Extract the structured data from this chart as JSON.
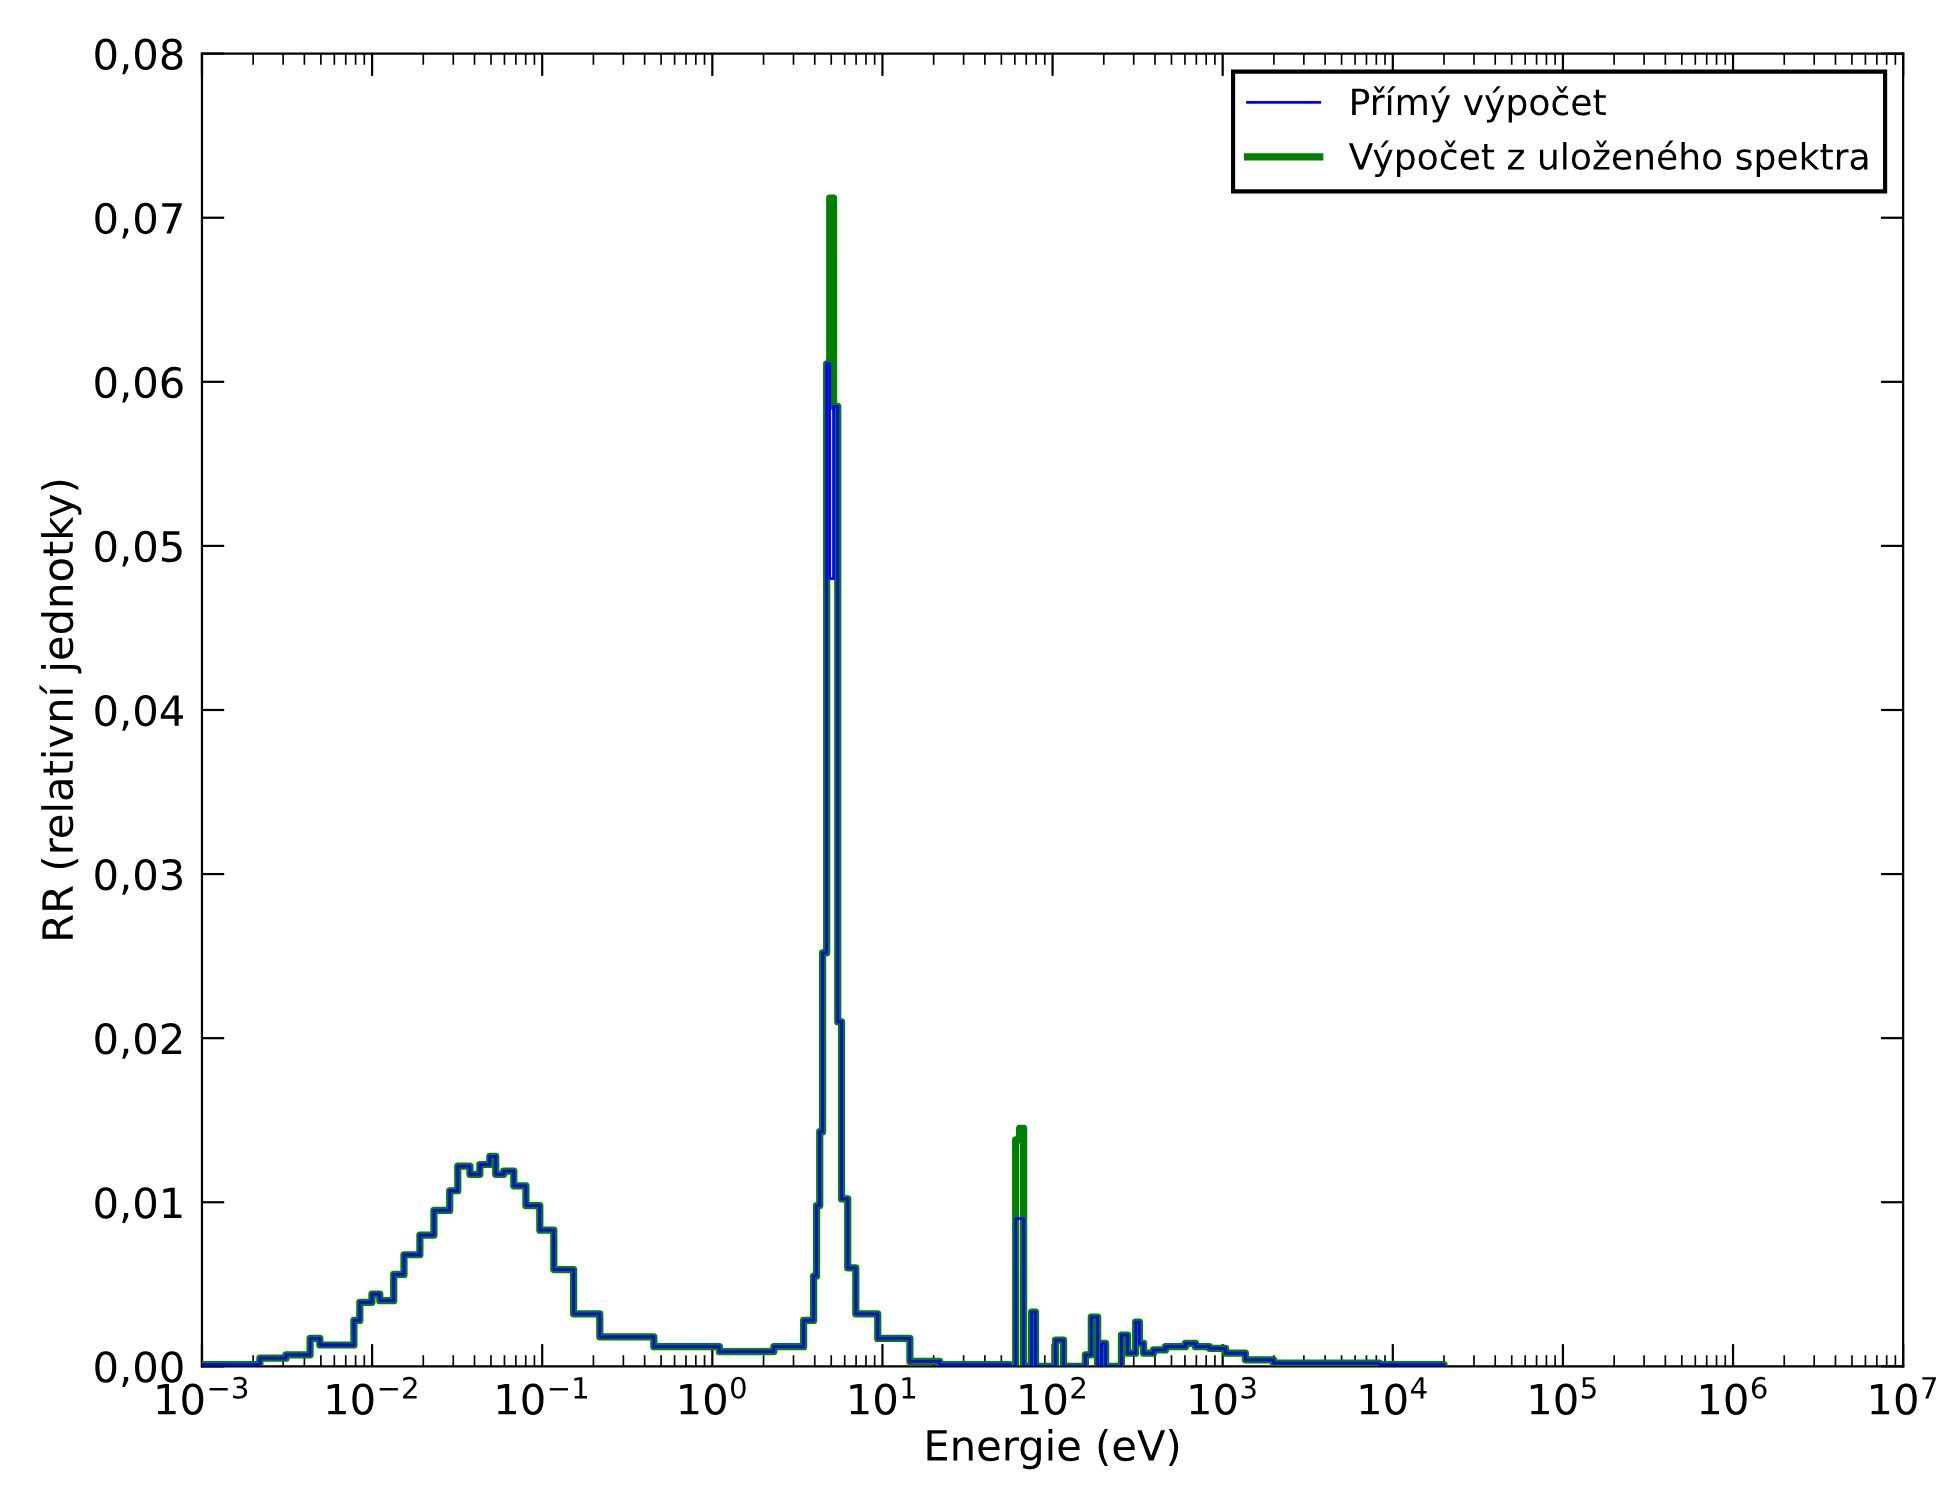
{
  "chart_data": {
    "type": "step",
    "xlabel": "Energie (eV)",
    "ylabel": "RR (relativní jednotky)",
    "log": "x",
    "grid": false,
    "legend": "top right",
    "line_style": "solid",
    "marker": "none",
    "x": [
      0.001,
      0.00219,
      0.00312,
      0.00432,
      0.00493,
      0.00782,
      0.00847,
      0.00998,
      0.0111,
      0.0134,
      0.0154,
      0.0191,
      0.0231,
      0.0286,
      0.0319,
      0.0376,
      0.043,
      0.0492,
      0.0533,
      0.0594,
      0.0681,
      0.0802,
      0.0968,
      0.117,
      0.153,
      0.218,
      0.453,
      1.1,
      2.3,
      3.44,
      3.94,
      4.1,
      4.28,
      4.45,
      4.7,
      4.9,
      5.16,
      5.46,
      5.75,
      6.25,
      6.97,
      9.38,
      14.5,
      21.7,
      55.8,
      60.7,
      64.0,
      67.6,
      75.3,
      79.4,
      104,
      116,
      156,
      169,
      184,
      194,
      205,
      254,
      276,
      308,
      324,
      343,
      392,
      461,
      604,
      692,
      836,
      1040,
      1360,
      1990,
      8340,
      20000
    ],
    "series": [
      {
        "name": "Přímý výpočet",
        "color": "#0000ff",
        "values": [
          0.0001,
          0.0005,
          0.0007,
          0.0017,
          0.0013,
          0.0028,
          0.0039,
          0.0044,
          0.004,
          0.0056,
          0.0068,
          0.008,
          0.0095,
          0.0107,
          0.0122,
          0.0117,
          0.0123,
          0.0128,
          0.0117,
          0.0119,
          0.011,
          0.0098,
          0.0083,
          0.0059,
          0.0032,
          0.0018,
          0.0012,
          0.0009,
          0.0012,
          0.0028,
          0.0055,
          0.0098,
          0.0143,
          0.0252,
          0.0611,
          0.048,
          0.0585,
          0.021,
          0.0102,
          0.006,
          0.0032,
          0.0017,
          0.0003,
          0.0001,
          0.0,
          0.009,
          0.009,
          0.0,
          0.0033,
          0.0,
          0.0016,
          0.0,
          0.0007,
          0.003,
          0.0,
          0.0014,
          0.0,
          0.0019,
          0.0008,
          0.0027,
          0.0014,
          0.0008,
          0.001,
          0.0012,
          0.0014,
          0.0012,
          0.0011,
          0.0008,
          0.0004,
          0.0002,
          0.0001,
          0.0
        ]
      },
      {
        "name": "Výpočet z uloženého spektra",
        "color": "#008000",
        "values": [
          0.0001,
          0.0005,
          0.0007,
          0.0017,
          0.0013,
          0.0028,
          0.0039,
          0.0044,
          0.004,
          0.0056,
          0.0068,
          0.008,
          0.0095,
          0.0107,
          0.0122,
          0.0117,
          0.0123,
          0.0128,
          0.0117,
          0.0119,
          0.011,
          0.0098,
          0.0083,
          0.0059,
          0.0032,
          0.0018,
          0.0012,
          0.0009,
          0.0012,
          0.0028,
          0.0055,
          0.0098,
          0.0143,
          0.0252,
          0.0611,
          0.0712,
          0.0585,
          0.021,
          0.0102,
          0.006,
          0.0032,
          0.0017,
          0.0003,
          0.0001,
          0.0,
          0.0138,
          0.0145,
          0.0,
          0.0033,
          0.0,
          0.0016,
          0.0,
          0.0007,
          0.003,
          0.0,
          0.0014,
          0.0,
          0.0019,
          0.0008,
          0.0027,
          0.0014,
          0.0008,
          0.001,
          0.0012,
          0.0014,
          0.0012,
          0.0011,
          0.0008,
          0.0004,
          0.0002,
          0.0001,
          0.0
        ]
      }
    ],
    "xlim": [
      0.001,
      10000000
    ],
    "xticks": [
      {
        "value": 0.001,
        "label": "10$^{−3}$"
      },
      {
        "value": 0.01,
        "label": "10$^{−2}$"
      },
      {
        "value": 0.1,
        "label": "10$^{−1}$"
      },
      {
        "value": 1,
        "label": "10$^{0}$"
      },
      {
        "value": 10,
        "label": "10$^{1}$"
      },
      {
        "value": 100,
        "label": "10$^{2}$"
      },
      {
        "value": 1000,
        "label": "10$^{3}$"
      },
      {
        "value": 10000,
        "label": "10$^{4}$"
      },
      {
        "value": 100000,
        "label": "10$^{5}$"
      },
      {
        "value": 1000000,
        "label": "10$^{6}$"
      },
      {
        "value": 10000000,
        "label": "10$^{7}$"
      }
    ],
    "ylim": [
      0,
      0.08
    ],
    "yticks": [
      {
        "value": 0,
        "label": "0,00"
      },
      {
        "value": 0.01,
        "label": "0,01"
      },
      {
        "value": 0.02,
        "label": "0,02"
      },
      {
        "value": 0.03,
        "label": "0,03"
      },
      {
        "value": 0.04,
        "label": "0,04"
      },
      {
        "value": 0.05,
        "label": "0,05"
      },
      {
        "value": 0.06,
        "label": "0,06"
      },
      {
        "value": 0.07,
        "label": "0,07"
      },
      {
        "value": 0.08,
        "label": "0,08"
      }
    ]
  }
}
